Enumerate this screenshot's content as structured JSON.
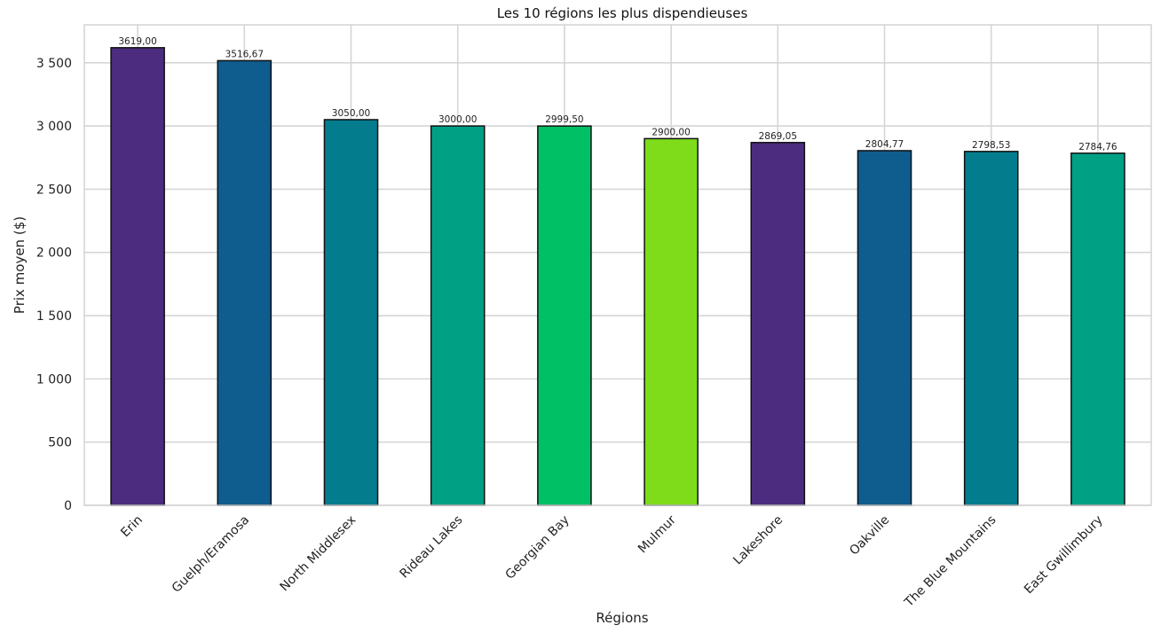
{
  "chart_data": {
    "type": "bar",
    "title": "Les 10 régions les plus dispendieuses",
    "xlabel": "Régions",
    "ylabel": "Prix moyen ($)",
    "categories": [
      "Erin",
      "Guelph/Eramosa",
      "North Middlesex",
      "Rideau Lakes",
      "Georgian Bay",
      "Mulmur",
      "Lakeshore",
      "Oakville",
      "The Blue Mountains",
      "East Gwillimbury"
    ],
    "values": [
      3619.0,
      3516.67,
      3050.0,
      3000.0,
      2999.5,
      2900.0,
      2869.05,
      2804.77,
      2798.53,
      2784.76
    ],
    "value_labels": [
      "3619,00",
      "3516,67",
      "3050,00",
      "3000,00",
      "2999,50",
      "2900,00",
      "2869,05",
      "2804,77",
      "2798,53",
      "2784,76"
    ],
    "colors": [
      "#4b2c7f",
      "#0f5c8f",
      "#037c8e",
      "#00a085",
      "#00c065",
      "#7edc1b",
      "#4b2c7f",
      "#0f5c8f",
      "#037c8e",
      "#00a085"
    ],
    "bar_edge_color": "#111111",
    "ylim": [
      0,
      3800
    ],
    "yticks": [
      0,
      500,
      1000,
      1500,
      2000,
      2500,
      3000,
      3500
    ],
    "ytick_labels": [
      "0",
      "500",
      "1 000",
      "1 500",
      "2 000",
      "2 500",
      "3 000",
      "3 500"
    ],
    "grid": true,
    "xtick_rotation": -45
  }
}
